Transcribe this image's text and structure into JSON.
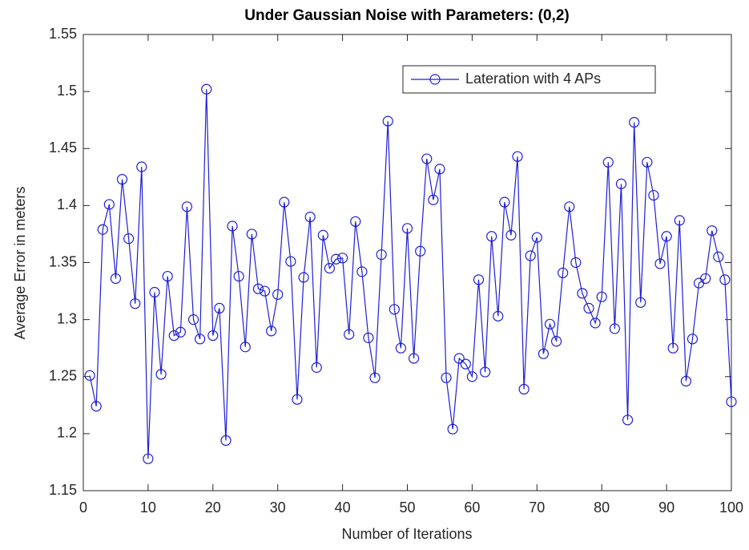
{
  "chart_data": {
    "type": "line",
    "title": "Under Gaussian Noise with Parameters: (0,2)",
    "x_label": "Number of Iterations",
    "y_label": "Average Error in meters",
    "x": [
      1,
      2,
      3,
      4,
      5,
      6,
      7,
      8,
      9,
      10,
      11,
      12,
      13,
      14,
      15,
      16,
      17,
      18,
      19,
      20,
      21,
      22,
      23,
      24,
      25,
      26,
      27,
      28,
      29,
      30,
      31,
      32,
      33,
      34,
      35,
      36,
      37,
      38,
      39,
      40,
      41,
      42,
      43,
      44,
      45,
      46,
      47,
      48,
      49,
      50,
      51,
      52,
      53,
      54,
      55,
      56,
      57,
      58,
      59,
      60,
      61,
      62,
      63,
      64,
      65,
      66,
      67,
      68,
      69,
      70,
      71,
      72,
      73,
      74,
      75,
      76,
      77,
      78,
      79,
      80,
      81,
      82,
      83,
      84,
      85,
      86,
      87,
      88,
      89,
      90,
      91,
      92,
      93,
      94,
      95,
      96,
      97,
      98,
      99,
      100
    ],
    "series": [
      {
        "name": "Lateration with 4 APs",
        "color": "#1f1fd6",
        "marker": "circle",
        "values": [
          1.251,
          1.224,
          1.379,
          1.401,
          1.336,
          1.423,
          1.371,
          1.314,
          1.434,
          1.178,
          1.324,
          1.252,
          1.338,
          1.286,
          1.289,
          1.399,
          1.3,
          1.283,
          1.502,
          1.286,
          1.31,
          1.194,
          1.382,
          1.338,
          1.276,
          1.375,
          1.327,
          1.325,
          1.29,
          1.322,
          1.403,
          1.351,
          1.23,
          1.337,
          1.39,
          1.258,
          1.374,
          1.345,
          1.353,
          1.354,
          1.287,
          1.386,
          1.342,
          1.284,
          1.249,
          1.357,
          1.474,
          1.309,
          1.275,
          1.38,
          1.266,
          1.36,
          1.441,
          1.405,
          1.432,
          1.249,
          1.204,
          1.266,
          1.261,
          1.25,
          1.335,
          1.254,
          1.373,
          1.303,
          1.403,
          1.374,
          1.443,
          1.239,
          1.356,
          1.372,
          1.27,
          1.296,
          1.281,
          1.341,
          1.399,
          1.35,
          1.323,
          1.31,
          1.297,
          1.32,
          1.438,
          1.292,
          1.419,
          1.212,
          1.473,
          1.315,
          1.438,
          1.409,
          1.349,
          1.373,
          1.275,
          1.387,
          1.246,
          1.283,
          1.332,
          1.336,
          1.378,
          1.355,
          1.335,
          1.228
        ]
      }
    ],
    "xlim": [
      0,
      100
    ],
    "xticks": [
      0,
      10,
      20,
      30,
      40,
      50,
      60,
      70,
      80,
      90,
      100
    ],
    "ylim": [
      1.15,
      1.55
    ],
    "yticks": [
      1.15,
      1.2,
      1.25,
      1.3,
      1.35,
      1.4,
      1.45,
      1.5,
      1.55
    ],
    "grid": false,
    "legend": "northeast"
  }
}
